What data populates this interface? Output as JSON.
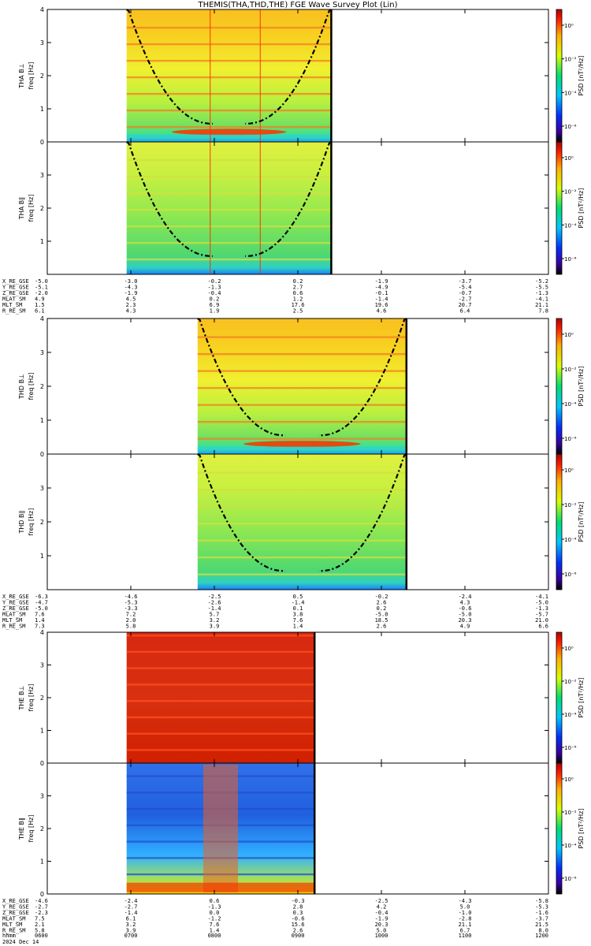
{
  "title": "THEMIS(THA,THD,THE) FGE Wave Survey Plot (Lin)",
  "colorbar": {
    "label": "PSD [nT²/Hz]",
    "ticks": [
      "10⁰",
      "10⁻²",
      "10⁻⁴",
      "10⁻⁶"
    ]
  },
  "chart_data": [
    {
      "type": "heatmap",
      "probe": "THA",
      "panels": [
        {
          "ylabel_top": "THA B⊥",
          "ylabel_unit": "freq [Hz]",
          "yticks": [
            "0",
            "1",
            "2",
            "3",
            "4"
          ],
          "ylim": [
            0,
            4
          ]
        },
        {
          "ylabel_top": "THA B∥",
          "ylabel_unit": "freq [Hz]",
          "yticks": [
            "1",
            "2",
            "3"
          ],
          "ylim": [
            0,
            4
          ]
        }
      ],
      "data_start_hour": 6.95,
      "data_end_hour": 9.4,
      "orbit_table": {
        "labels": [
          "X_RE_GSE",
          "Y_RE_GSE",
          "Z_RE_GSE",
          "MLAT_SM",
          "MLT_SM",
          "R_RE_SM"
        ],
        "rows": [
          [
            "-5.0",
            "-3.0",
            "-0.2",
            "0.2",
            "-1.9",
            "-3.7",
            "-5.2"
          ],
          [
            "-5.1",
            "-4.3",
            "-1.3",
            "2.7",
            "-4.9",
            "-5.4",
            "-5.5"
          ],
          [
            "-2.0",
            "-1.9",
            "-0.4",
            "0.6",
            "-0.1",
            "-0.7",
            "-1.3"
          ],
          [
            "4.9",
            "4.5",
            "0.2",
            "1.2",
            "-1.4",
            "-2.7",
            "-4.1"
          ],
          [
            "1.5",
            "2.3",
            "6.9",
            "17.6",
            "19.6",
            "20.7",
            "21.1"
          ],
          [
            "6.1",
            "4.3",
            "1.9",
            "2.5",
            "4.6",
            "6.4",
            "7.8"
          ]
        ]
      }
    },
    {
      "type": "heatmap",
      "probe": "THD",
      "panels": [
        {
          "ylabel_top": "THD B⊥",
          "ylabel_unit": "freq [Hz]",
          "yticks": [
            "0",
            "1",
            "2",
            "3",
            "4"
          ],
          "ylim": [
            0,
            4
          ]
        },
        {
          "ylabel_top": "THD B∥",
          "ylabel_unit": "freq [Hz]",
          "yticks": [
            "1",
            "2",
            "3"
          ],
          "ylim": [
            0,
            4
          ]
        }
      ],
      "data_start_hour": 7.8,
      "data_end_hour": 10.3,
      "orbit_table": {
        "labels": [
          "X_RE_GSE",
          "Y_RE_GSE",
          "Z_RE_GSE",
          "MLAT_SM",
          "MLT_SM",
          "R_RE_SM"
        ],
        "rows": [
          [
            "-6.3",
            "-4.6",
            "-2.5",
            "0.5",
            "-0.2",
            "-2.4",
            "-4.1"
          ],
          [
            "-4.7",
            "-5.3",
            "-2.6",
            "-1.4",
            "2.6",
            "4.3",
            "-5.0"
          ],
          [
            "-5.0",
            "-3.3",
            "-1.4",
            "0.1",
            "0.2",
            "-0.6",
            "-1.3"
          ],
          [
            "7.6",
            "7.2",
            "5.7",
            "3.8",
            "-5.0",
            "-5.0",
            "-5.7"
          ],
          [
            "1.4",
            "2.0",
            "3.2",
            "7.6",
            "18.5",
            "20.3",
            "21.0"
          ],
          [
            "7.3",
            "5.8",
            "3.9",
            "1.4",
            "2.6",
            "4.9",
            "6.6"
          ]
        ]
      }
    },
    {
      "type": "heatmap",
      "probe": "THE",
      "panels": [
        {
          "ylabel_top": "THE B⊥",
          "ylabel_unit": "freq [Hz]",
          "yticks": [
            "0",
            "1",
            "2",
            "3",
            "4"
          ],
          "ylim": [
            0,
            4
          ]
        },
        {
          "ylabel_top": "THE B∥",
          "ylabel_unit": "freq [Hz]",
          "yticks": [
            "0",
            "1",
            "2",
            "3"
          ],
          "ylim": [
            0,
            4
          ]
        }
      ],
      "data_start_hour": 6.95,
      "data_end_hour": 9.2,
      "orbit_table": {
        "labels": [
          "X_RE_GSE",
          "Y_RE_GSE",
          "Z_RE_GSE",
          "MLAT_SM",
          "MLT_SM",
          "R_RE_SM"
        ],
        "rows": [
          [
            "-4.6",
            "-2.4",
            "0.6",
            "-0.3",
            "-2.5",
            "-4.3",
            "-5.8"
          ],
          [
            "-2.7",
            "-2.7",
            "-1.3",
            "2.8",
            "4.2",
            "5.0",
            "-5.3"
          ],
          [
            "-2.3",
            "-1.4",
            "0.0",
            "0.3",
            "-0.4",
            "-1.0",
            "-1.6"
          ],
          [
            "7.5",
            "6.1",
            "-1.2",
            "-0.6",
            "-1.9",
            "-2.8",
            "-3.7"
          ],
          [
            "2.1",
            "3.2",
            "7.6",
            "15.6",
            "20.3",
            "21.1",
            "21.5"
          ],
          [
            "5.8",
            "3.9",
            "1.4",
            "2.6",
            "5.0",
            "6.7",
            "8.0"
          ]
        ]
      }
    }
  ],
  "time_axis": {
    "label_row1": "hhmm",
    "label_row2": "2024 Dec 14",
    "ticks": [
      "0600",
      "0700",
      "0800",
      "0900",
      "1000",
      "1100",
      "1200"
    ],
    "range_hours": [
      6,
      12
    ]
  }
}
